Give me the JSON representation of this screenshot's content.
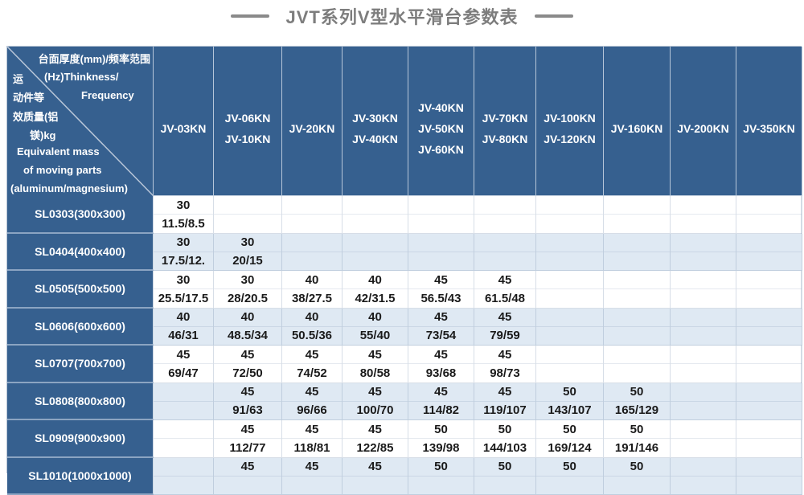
{
  "title": "JVT系列V型水平滑台参数表",
  "colors": {
    "header_blue": "#36608f",
    "alt_row_blue": "#dfe9f3",
    "row_white": "#ffffff",
    "title_gray": "#7d7d7d",
    "data_text": "#1a1a1a"
  },
  "chart_data": {
    "type": "table",
    "title": "JVT系列V型水平滑台参数表",
    "corner": {
      "top_right_lines": [
        "台面厚度(mm)/频率范围",
        "(Hz)Thinkness/",
        "Frequency"
      ],
      "bottom_left_lines": [
        "运",
        "动件等",
        "效质量(铝",
        "镁)kg",
        "Equivalent mass",
        "of moving parts",
        "(aluminum/magnesium)"
      ],
      "top_right_meaning": "台面厚度(mm)/频率范围(Hz) Thinkness/Frequency",
      "bottom_left_meaning": "运动件等效质量(铝镁)kg Equivalent mass of moving parts (aluminum/magnesium)"
    },
    "columns": [
      {
        "lines": [
          "JV-03KN"
        ]
      },
      {
        "lines": [
          "JV-06KN",
          "JV-10KN"
        ]
      },
      {
        "lines": [
          "JV-20KN"
        ]
      },
      {
        "lines": [
          "JV-30KN",
          "JV-40KN"
        ]
      },
      {
        "lines": [
          "JV-40KN",
          "JV-50KN",
          "JV-60KN"
        ]
      },
      {
        "lines": [
          "JV-70KN",
          "JV-80KN"
        ]
      },
      {
        "lines": [
          "JV-100KN",
          "JV-120KN"
        ]
      },
      {
        "lines": [
          "JV-160KN"
        ]
      },
      {
        "lines": [
          "JV-200KN"
        ]
      },
      {
        "lines": [
          "JV-350KN"
        ]
      }
    ],
    "rows": [
      {
        "label": "SL0303(300x300)",
        "thickness": [
          "30",
          "",
          "",
          "",
          "",
          "",
          "",
          "",
          "",
          ""
        ],
        "mass": [
          "11.5/8.5",
          "",
          "",
          "",
          "",
          "",
          "",
          "",
          "",
          ""
        ]
      },
      {
        "label": "SL0404(400x400)",
        "thickness": [
          "30",
          "30",
          "",
          "",
          "",
          "",
          "",
          "",
          "",
          ""
        ],
        "mass": [
          "17.5/12.",
          "20/15",
          "",
          "",
          "",
          "",
          "",
          "",
          "",
          ""
        ]
      },
      {
        "label": "SL0505(500x500)",
        "thickness": [
          "30",
          "30",
          "40",
          "40",
          "45",
          "45",
          "",
          "",
          "",
          ""
        ],
        "mass": [
          "25.5/17.5",
          "28/20.5",
          "38/27.5",
          "42/31.5",
          "56.5/43",
          "61.5/48",
          "",
          "",
          "",
          ""
        ]
      },
      {
        "label": "SL0606(600x600)",
        "thickness": [
          "40",
          "40",
          "40",
          "40",
          "45",
          "45",
          "",
          "",
          "",
          ""
        ],
        "mass": [
          "46/31",
          "48.5/34",
          "50.5/36",
          "55/40",
          "73/54",
          "79/59",
          "",
          "",
          "",
          ""
        ]
      },
      {
        "label": "SL0707(700x700)",
        "thickness": [
          "45",
          "45",
          "45",
          "45",
          "45",
          "45",
          "",
          "",
          "",
          ""
        ],
        "mass": [
          "69/47",
          "72/50",
          "74/52",
          "80/58",
          "93/68",
          "98/73",
          "",
          "",
          "",
          ""
        ]
      },
      {
        "label": "SL0808(800x800)",
        "thickness": [
          "",
          "45",
          "45",
          "45",
          "45",
          "45",
          "50",
          "50",
          "",
          ""
        ],
        "mass": [
          "",
          "91/63",
          "96/66",
          "100/70",
          "114/82",
          "119/107",
          "143/107",
          "165/129",
          "",
          ""
        ]
      },
      {
        "label": "SL0909(900x900)",
        "thickness": [
          "",
          "45",
          "45",
          "45",
          "50",
          "50",
          "50",
          "50",
          "",
          ""
        ],
        "mass": [
          "",
          "112/77",
          "118/81",
          "122/85",
          "139/98",
          "144/103",
          "169/124",
          "191/146",
          "",
          ""
        ]
      },
      {
        "label": "SL1010(1000x1000)",
        "partial": true,
        "thickness": [
          "",
          "45",
          "45",
          "45",
          "50",
          "50",
          "50",
          "50",
          "",
          ""
        ],
        "mass": [
          "",
          "",
          "",
          "",
          "",
          "",
          "",
          "",
          "",
          ""
        ]
      }
    ]
  }
}
